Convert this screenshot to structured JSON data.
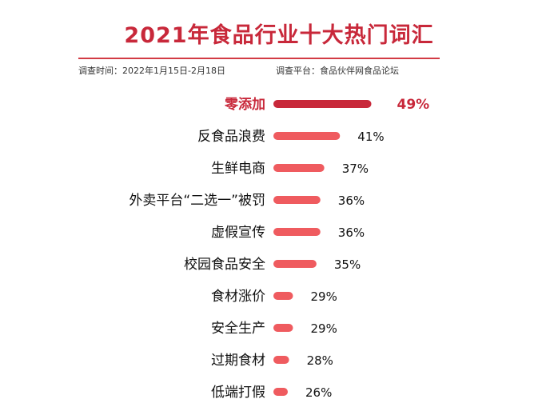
{
  "header": {
    "title": "2021年食品行业十大热门词汇",
    "survey_time": "调查时间：2022年1月15日-2月18日",
    "survey_platform": "调查平台：食品伙伴网食品论坛"
  },
  "colors": {
    "highlight": "#c8283a",
    "bar": "#ef5b5f",
    "title": "#c8283a"
  },
  "chart_data": {
    "type": "bar",
    "orientation": "horizontal",
    "title": "2021年食品行业十大热门词汇",
    "categories": [
      "零添加",
      "反食品浪费",
      "生鲜电商",
      "外卖平台“二选一”被罚",
      "虚假宣传",
      "校园食品安全",
      "食材涨价",
      "安全生产",
      "过期食材",
      "低端打假"
    ],
    "values": [
      49,
      41,
      37,
      36,
      36,
      35,
      29,
      29,
      28,
      26
    ],
    "labels": [
      "49%",
      "41%",
      "37%",
      "36%",
      "36%",
      "35%",
      "29%",
      "29%",
      "28%",
      "26%"
    ],
    "unit": "%",
    "highlight_index": 0,
    "grid": false,
    "legend": "none"
  }
}
